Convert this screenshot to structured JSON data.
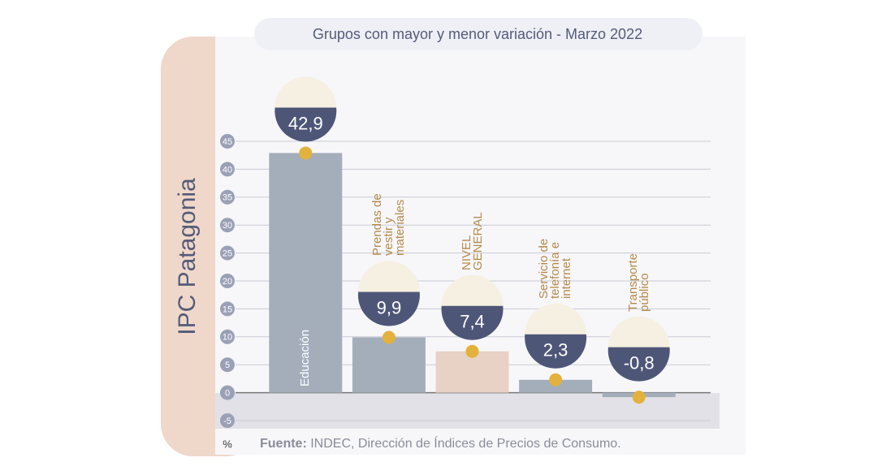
{
  "chart_data": {
    "type": "bar",
    "title": "Grupos con mayor y menor variación - Marzo 2022",
    "side_label": "IPC Patagonia",
    "y_unit": "%",
    "source_label": "Fuente:",
    "source": "INDEC, Dirección de Índices de Precios de Consumo.",
    "categories": [
      "Educación",
      "Prendas de vestir y materiales",
      "NIVEL GENERAL",
      "Servicio de telefonía e internet",
      "Transporte público"
    ],
    "values": [
      42.9,
      9.9,
      7.4,
      2.3,
      -0.8
    ],
    "value_labels": [
      "42,9",
      "9,9",
      "7,4",
      "2,3",
      "-0,8"
    ],
    "colors": [
      "#a4aebb",
      "#a4aebb",
      "#e8d2c5",
      "#a4aebb",
      "#a4aebb"
    ],
    "ylim": [
      -5,
      45
    ],
    "yticks": [
      -5,
      0,
      5,
      10,
      15,
      20,
      25,
      30,
      35,
      40,
      45
    ],
    "grid": true
  }
}
